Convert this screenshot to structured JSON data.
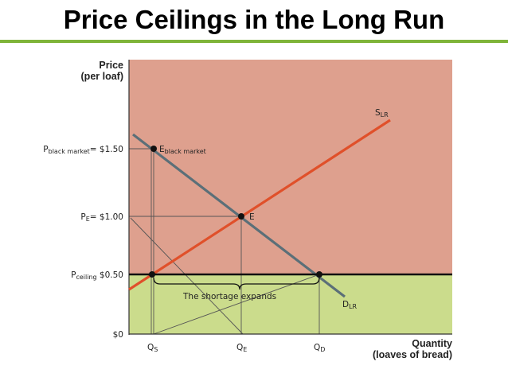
{
  "slide": {
    "title": "Price Ceilings in the Long Run"
  },
  "axes": {
    "y_title_line1": "Price",
    "y_title_line2": "(per loaf)",
    "x_title_line1": "Quantity",
    "x_title_line2": "(loaves of bread)"
  },
  "price_labels": {
    "black_market": {
      "main": "P",
      "sub": "black market",
      "value": "= $1.50"
    },
    "equilibrium": {
      "main": "P",
      "sub": "E",
      "value": "= $1.00"
    },
    "ceiling": {
      "main": "P",
      "sub": "ceiling",
      "value": " $0.50"
    },
    "zero": "$0"
  },
  "quantity_labels": {
    "qs": {
      "main": "Q",
      "sub": "S"
    },
    "qe": {
      "main": "Q",
      "sub": "E"
    },
    "qd": {
      "main": "Q",
      "sub": "D"
    }
  },
  "curves": {
    "supply": {
      "main": "S",
      "sub": "LR",
      "color": "#e0502a"
    },
    "demand": {
      "main": "D",
      "sub": "LR",
      "color": "#5b6f78"
    },
    "ceiling_color": "#111111"
  },
  "points": {
    "black_market": {
      "main": "E",
      "sub": "black market"
    },
    "equilibrium": {
      "main": "E"
    }
  },
  "annotation": "The shortage expands",
  "colors": {
    "upper_region": "#dea08e",
    "lower_region": "#cbdc8c",
    "title_rule": "#7fb439"
  }
}
